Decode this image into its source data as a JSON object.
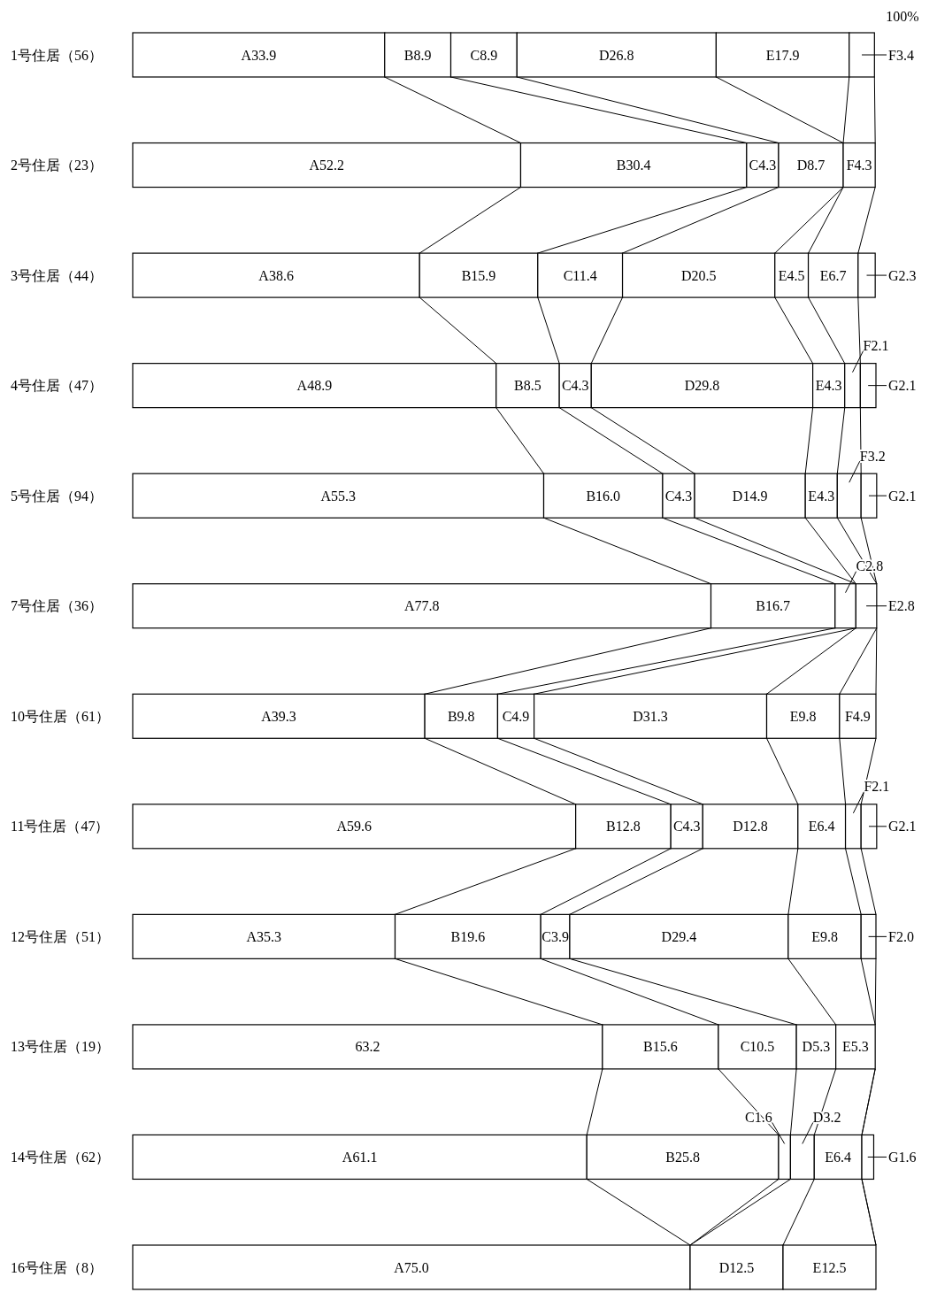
{
  "chart_data": {
    "type": "bar",
    "orientation": "horizontal",
    "stacked": true,
    "xlim": [
      0,
      100
    ],
    "categories": [
      "1号住居（56）",
      "2号住居（23）",
      "3号住居（44）",
      "4号住居（47）",
      "5号住居（94）",
      "7号住居（36）",
      "10号住居（61）",
      "11号住居（47）",
      "12号住居（51）",
      "13号住居（19）",
      "14号住居（62）",
      "16号住居（8）"
    ],
    "series": [
      {
        "color": "#ffffff",
        "values": [
          33.9,
          52.2,
          38.6,
          48.9,
          55.3,
          77.8,
          39.3,
          59.6,
          35.3,
          63.2,
          61.1,
          75.0
        ],
        "value_labels": [
          "A33.9",
          "A52.2",
          "A38.6",
          "A48.9",
          "A55.3",
          "A77.8",
          "A39.3",
          "A59.6",
          "A35.3",
          "63.2",
          "A61.1",
          "A75.0"
        ]
      },
      {
        "color": "#ffffff",
        "values": [
          8.9,
          30.4,
          15.9,
          8.5,
          16.0,
          16.7,
          9.8,
          12.8,
          19.6,
          15.6,
          25.8,
          null
        ],
        "value_labels": [
          "B8.9",
          "B30.4",
          "B15.9",
          "B8.5",
          "B16.0",
          "B16.7",
          "B9.8",
          "B12.8",
          "B19.6",
          "B15.6",
          "B25.8",
          null
        ]
      },
      {
        "color": "#ffffff",
        "values": [
          8.9,
          4.3,
          11.4,
          4.3,
          4.3,
          2.8,
          4.9,
          4.3,
          3.9,
          10.5,
          1.6,
          null
        ],
        "value_labels": [
          "C8.9",
          "C4.3",
          "C11.4",
          "C4.3",
          "C4.3",
          "C2.8",
          "C4.9",
          "C4.3",
          "C3.9",
          "C10.5",
          "C1.6",
          null
        ]
      },
      {
        "color": "#ffffff",
        "values": [
          26.8,
          8.7,
          20.5,
          29.8,
          14.9,
          null,
          31.3,
          12.8,
          29.4,
          5.3,
          3.2,
          12.5
        ],
        "value_labels": [
          "D26.8",
          "D8.7",
          "D20.5",
          "D29.8",
          "D14.9",
          null,
          "D31.3",
          "D12.8",
          "D29.4",
          "D5.3",
          "D3.2",
          "D12.5"
        ]
      },
      {
        "color": "#ffffff",
        "values": [
          17.9,
          null,
          4.5,
          4.3,
          4.3,
          2.8,
          9.8,
          6.4,
          9.8,
          5.3,
          6.4,
          12.5
        ],
        "value_labels": [
          "E17.9",
          null,
          "E4.5",
          "E4.3",
          "E4.3",
          "E2.8",
          "E9.8",
          "E6.4",
          "E9.8",
          "E5.3",
          "E6.4",
          "E12.5"
        ]
      },
      {
        "color": "#ffffff",
        "values": [
          3.4,
          4.3,
          6.7,
          2.1,
          3.2,
          null,
          4.9,
          2.1,
          2.0,
          null,
          null,
          null
        ],
        "value_labels": [
          "F3.4",
          "F4.3",
          "E6.7",
          "F2.1",
          "F3.2",
          null,
          "F4.9",
          "F2.1",
          "F2.0",
          null,
          null,
          null
        ]
      },
      {
        "color": "#ffffff",
        "values": [
          null,
          null,
          2.3,
          2.1,
          2.1,
          null,
          null,
          2.1,
          null,
          null,
          1.6,
          null
        ],
        "value_labels": [
          null,
          null,
          "G2.3",
          "G2.1",
          "G2.1",
          null,
          null,
          "G2.1",
          null,
          null,
          "G1.6",
          null
        ]
      }
    ],
    "annotations": [
      "100%"
    ]
  }
}
